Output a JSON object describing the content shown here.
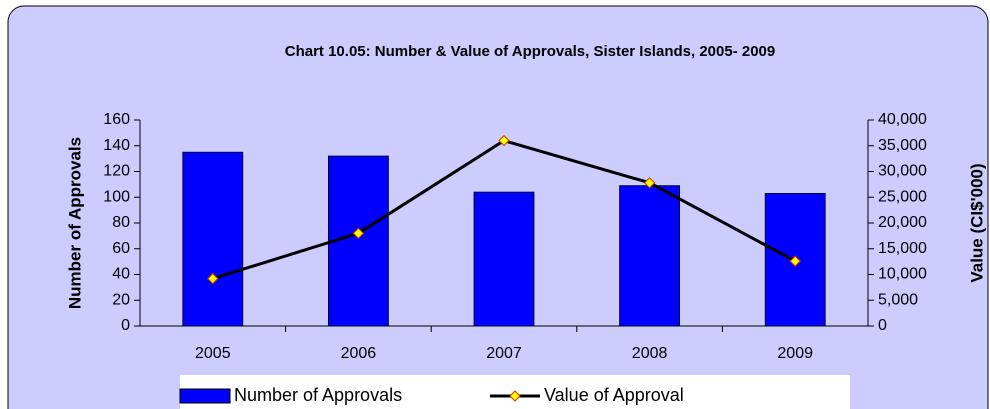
{
  "chart_data": {
    "type": "combo",
    "title": "Chart 10.05: Number & Value of Approvals, Sister Islands, 2005- 2009",
    "ylabel": "Number of Approvals",
    "y2label": "Value (CI$'000)",
    "categories": [
      "2005",
      "2006",
      "2007",
      "2008",
      "2009"
    ],
    "series": [
      {
        "name": "Number of Approvals",
        "type": "bar",
        "color": "#0000ff",
        "values": [
          135,
          132,
          104,
          109,
          103
        ]
      },
      {
        "name": "Value of Approval",
        "type": "line",
        "axis": "y2",
        "color": "#000000",
        "marker_color": "#ffff00",
        "values": [
          9200,
          18000,
          36000,
          27800,
          12600
        ]
      }
    ],
    "ylim": [
      0,
      160
    ],
    "yticks": [
      0,
      20,
      40,
      60,
      80,
      100,
      120,
      140,
      160
    ],
    "y2lim": [
      0,
      40000
    ],
    "y2ticks": [
      0,
      {
        "value": 5000,
        "label": "5,000"
      },
      {
        "value": 10000,
        "label": "10,000"
      },
      {
        "value": 15000,
        "label": "15,000"
      },
      {
        "value": 20000,
        "label": "20,000"
      },
      {
        "value": 25000,
        "label": "25,000"
      },
      {
        "value": 30000,
        "label": "30,000"
      },
      {
        "value": 35000,
        "label": "35,000"
      },
      {
        "value": 40000,
        "label": "40,000"
      }
    ],
    "legend": "bottom",
    "grid": false
  }
}
